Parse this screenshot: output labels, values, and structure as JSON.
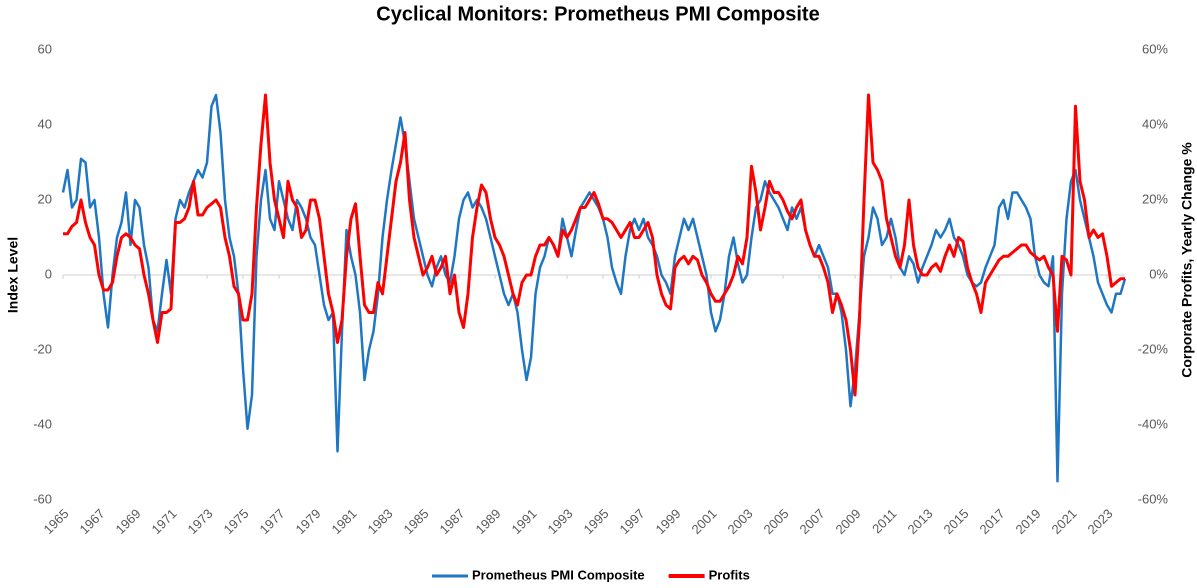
{
  "chart_data": {
    "type": "line",
    "title": "Cyclical Monitors: Prometheus PMI Composite",
    "ylabel": "Index Level",
    "y2label": "Corporate Profits, Yearly Change %",
    "x": [
      1965,
      1965.25,
      1965.5,
      1965.75,
      1966,
      1966.25,
      1966.5,
      1966.75,
      1967,
      1967.25,
      1967.5,
      1967.75,
      1968,
      1968.25,
      1968.5,
      1968.75,
      1969,
      1969.25,
      1969.5,
      1969.75,
      1970,
      1970.25,
      1970.5,
      1970.75,
      1971,
      1971.25,
      1971.5,
      1971.75,
      1972,
      1972.25,
      1972.5,
      1972.75,
      1973,
      1973.25,
      1973.5,
      1973.75,
      1974,
      1974.25,
      1974.5,
      1974.75,
      1975,
      1975.25,
      1975.5,
      1975.75,
      1976,
      1976.25,
      1976.5,
      1976.75,
      1977,
      1977.25,
      1977.5,
      1977.75,
      1978,
      1978.25,
      1978.5,
      1978.75,
      1979,
      1979.25,
      1979.5,
      1979.75,
      1980,
      1980.25,
      1980.5,
      1980.75,
      1981,
      1981.25,
      1981.5,
      1981.75,
      1982,
      1982.25,
      1982.5,
      1982.75,
      1983,
      1983.25,
      1983.5,
      1983.75,
      1984,
      1984.25,
      1984.5,
      1984.75,
      1985,
      1985.25,
      1985.5,
      1985.75,
      1986,
      1986.25,
      1986.5,
      1986.75,
      1987,
      1987.25,
      1987.5,
      1987.75,
      1988,
      1988.25,
      1988.5,
      1988.75,
      1989,
      1989.25,
      1989.5,
      1989.75,
      1990,
      1990.25,
      1990.5,
      1990.75,
      1991,
      1991.25,
      1991.5,
      1991.75,
      1992,
      1992.25,
      1992.5,
      1992.75,
      1993,
      1993.25,
      1993.5,
      1993.75,
      1994,
      1994.25,
      1994.5,
      1994.75,
      1995,
      1995.25,
      1995.5,
      1995.75,
      1996,
      1996.25,
      1996.5,
      1996.75,
      1997,
      1997.25,
      1997.5,
      1997.75,
      1998,
      1998.25,
      1998.5,
      1998.75,
      1999,
      1999.25,
      1999.5,
      1999.75,
      2000,
      2000.25,
      2000.5,
      2000.75,
      2001,
      2001.25,
      2001.5,
      2001.75,
      2002,
      2002.25,
      2002.5,
      2002.75,
      2003,
      2003.25,
      2003.5,
      2003.75,
      2004,
      2004.25,
      2004.5,
      2004.75,
      2005,
      2005.25,
      2005.5,
      2005.75,
      2006,
      2006.25,
      2006.5,
      2006.75,
      2007,
      2007.25,
      2007.5,
      2007.75,
      2008,
      2008.25,
      2008.5,
      2008.75,
      2009,
      2009.25,
      2009.5,
      2009.75,
      2010,
      2010.25,
      2010.5,
      2010.75,
      2011,
      2011.25,
      2011.5,
      2011.75,
      2012,
      2012.25,
      2012.5,
      2012.75,
      2013,
      2013.25,
      2013.5,
      2013.75,
      2014,
      2014.25,
      2014.5,
      2014.75,
      2015,
      2015.25,
      2015.5,
      2015.75,
      2016,
      2016.25,
      2016.5,
      2016.75,
      2017,
      2017.25,
      2017.5,
      2017.75,
      2018,
      2018.25,
      2018.5,
      2018.75,
      2019,
      2019.25,
      2019.5,
      2019.75,
      2020,
      2020.25,
      2020.5,
      2020.75,
      2021,
      2021.25,
      2021.5,
      2021.75,
      2022,
      2022.25,
      2022.5,
      2022.75,
      2023,
      2023.25,
      2023.5,
      2023.75,
      2024
    ],
    "series": [
      {
        "name": "Prometheus PMI Composite",
        "color": "#1f77c4",
        "values": [
          22,
          28,
          18,
          20,
          31,
          30,
          18,
          20,
          10,
          -5,
          -14,
          0,
          10,
          14,
          22,
          8,
          20,
          18,
          8,
          2,
          -12,
          -15,
          -5,
          4,
          -5,
          15,
          20,
          18,
          22,
          25,
          28,
          26,
          30,
          45,
          48,
          38,
          20,
          10,
          5,
          -5,
          -25,
          -41,
          -32,
          5,
          20,
          28,
          15,
          12,
          25,
          20,
          15,
          12,
          20,
          18,
          15,
          10,
          8,
          0,
          -8,
          -12,
          -10,
          -47,
          -15,
          12,
          5,
          0,
          -10,
          -28,
          -20,
          -15,
          -5,
          10,
          20,
          28,
          35,
          42,
          35,
          25,
          15,
          10,
          5,
          0,
          -3,
          2,
          5,
          0,
          -2,
          5,
          15,
          20,
          22,
          18,
          20,
          18,
          15,
          10,
          5,
          0,
          -5,
          -8,
          -5,
          -10,
          -20,
          -28,
          -22,
          -5,
          2,
          5,
          10,
          8,
          5,
          15,
          10,
          5,
          12,
          18,
          20,
          22,
          20,
          18,
          15,
          10,
          2,
          -2,
          -5,
          5,
          12,
          15,
          12,
          15,
          10,
          8,
          5,
          0,
          -2,
          -5,
          5,
          10,
          15,
          12,
          15,
          10,
          5,
          0,
          -10,
          -15,
          -12,
          -5,
          5,
          10,
          3,
          -2,
          0,
          10,
          18,
          20,
          25,
          22,
          20,
          18,
          15,
          12,
          18,
          15,
          18,
          12,
          8,
          5,
          8,
          5,
          2,
          -5,
          -5,
          -10,
          -20,
          -35,
          -25,
          -10,
          5,
          10,
          18,
          15,
          8,
          10,
          15,
          10,
          2,
          0,
          5,
          3,
          -2,
          2,
          5,
          8,
          12,
          10,
          12,
          15,
          10,
          8,
          5,
          0,
          -2,
          -3,
          -2,
          2,
          5,
          8,
          18,
          20,
          15,
          22,
          22,
          20,
          18,
          15,
          5,
          0,
          -2,
          -3,
          5,
          -55,
          -5,
          15,
          25,
          28,
          20,
          15,
          10,
          5,
          -2,
          -5,
          -8,
          -10,
          -5,
          -5,
          -1
        ]
      },
      {
        "name": "Profits",
        "color": "#ff0000",
        "axis": "y2",
        "values": [
          11,
          11,
          13,
          14,
          20,
          14,
          10,
          8,
          0,
          -4,
          -4,
          -2,
          5,
          10,
          11,
          10,
          8,
          7,
          0,
          -5,
          -12,
          -18,
          -10,
          -10,
          -9,
          14,
          14,
          15,
          18,
          25,
          16,
          16,
          18,
          19,
          20,
          18,
          10,
          5,
          -3,
          -5,
          -12,
          -12,
          -5,
          18,
          35,
          48,
          30,
          20,
          15,
          10,
          25,
          20,
          18,
          10,
          12,
          20,
          20,
          15,
          5,
          -5,
          -10,
          -18,
          -12,
          5,
          15,
          19,
          5,
          -8,
          -10,
          -10,
          -2,
          -5,
          5,
          15,
          25,
          30,
          38,
          20,
          10,
          5,
          0,
          2,
          5,
          0,
          2,
          5,
          -5,
          0,
          -10,
          -14,
          -5,
          10,
          18,
          24,
          22,
          15,
          10,
          8,
          5,
          0,
          -5,
          -8,
          -2,
          0,
          0,
          5,
          8,
          8,
          10,
          8,
          5,
          12,
          10,
          12,
          15,
          18,
          18,
          20,
          22,
          19,
          15,
          15,
          14,
          12,
          10,
          12,
          14,
          10,
          10,
          12,
          14,
          10,
          0,
          -5,
          -8,
          -9,
          2,
          4,
          5,
          3,
          5,
          4,
          0,
          -2,
          -5,
          -7,
          -7,
          -5,
          -3,
          0,
          5,
          3,
          10,
          29,
          22,
          12,
          18,
          25,
          22,
          22,
          20,
          17,
          15,
          18,
          20,
          12,
          8,
          5,
          5,
          2,
          -2,
          -10,
          -5,
          -8,
          -12,
          -20,
          -32,
          -12,
          20,
          48,
          30,
          28,
          25,
          15,
          10,
          5,
          2,
          8,
          20,
          8,
          2,
          0,
          0,
          2,
          3,
          1,
          5,
          8,
          5,
          10,
          9,
          2,
          -2,
          -5,
          -10,
          -2,
          0,
          2,
          4,
          5,
          5,
          6,
          7,
          8,
          8,
          6,
          5,
          4,
          5,
          2,
          0,
          -15,
          5,
          4,
          0,
          45,
          25,
          20,
          10,
          12,
          10,
          11,
          5,
          -3,
          -2,
          -1,
          -1
        ]
      }
    ],
    "xlim": [
      1965,
      2024
    ],
    "xticks": [
      1965,
      1967,
      1969,
      1971,
      1973,
      1975,
      1977,
      1979,
      1981,
      1983,
      1985,
      1987,
      1989,
      1991,
      1993,
      1995,
      1997,
      1999,
      2001,
      2003,
      2005,
      2007,
      2009,
      2011,
      2013,
      2015,
      2017,
      2019,
      2021,
      2023
    ],
    "ylim": [
      -60,
      60
    ],
    "yticks": [
      -60,
      -40,
      -20,
      0,
      20,
      40,
      60
    ],
    "y2lim": [
      -60,
      60
    ],
    "y2ticks": [
      {
        "value": -60,
        "label": "-60%"
      },
      {
        "value": -40,
        "label": "-40%"
      },
      {
        "value": -20,
        "label": "-20%"
      },
      {
        "value": 0,
        "label": "0%"
      },
      {
        "value": 20,
        "label": "20%"
      },
      {
        "value": 40,
        "label": "40%"
      },
      {
        "value": 60,
        "label": "60%"
      }
    ]
  }
}
